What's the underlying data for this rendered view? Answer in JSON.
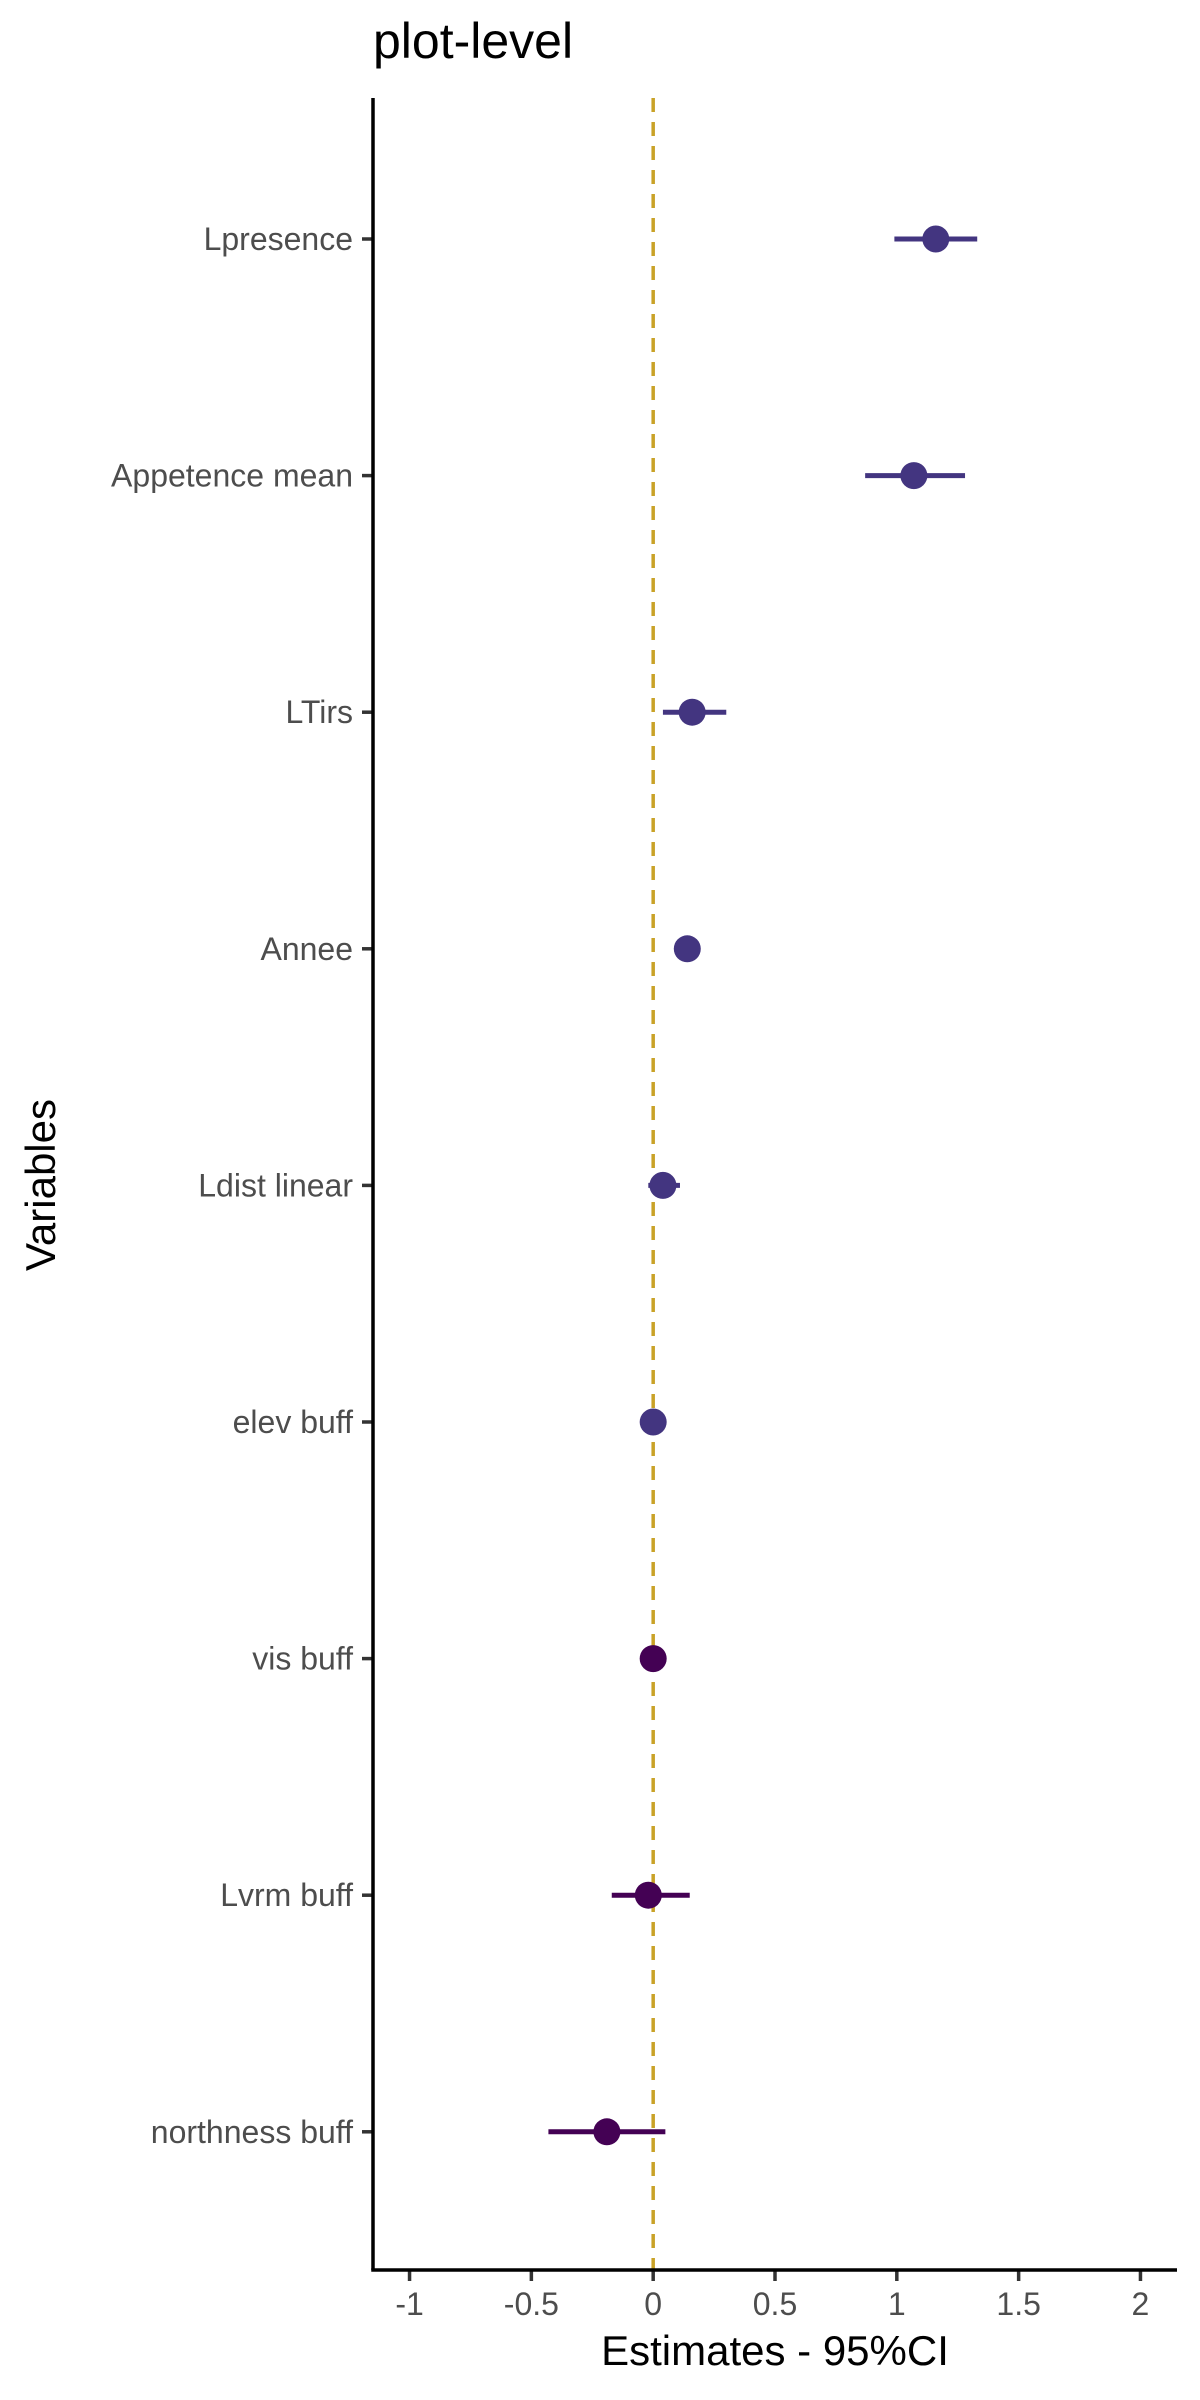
{
  "chart_data": {
    "type": "scatter",
    "title": "plot-level",
    "xlabel": "Estimates - 95%CI",
    "ylabel": "Variables",
    "xlim": [
      -1.15,
      2.15
    ],
    "x_ticks": [
      "-1",
      "-0.5",
      "0",
      "0.5",
      "1",
      "1.5",
      "2"
    ],
    "x_tick_values": [
      -1,
      -0.5,
      0,
      0.5,
      1,
      1.5,
      2
    ],
    "reference_line": {
      "x": 0,
      "color": "#c9a227",
      "style": "dashed"
    },
    "grid": false,
    "legend": "none",
    "points": [
      {
        "label": "Lpresence",
        "estimate": 1.16,
        "ci_low": 0.99,
        "ci_high": 1.33,
        "color": "#433580"
      },
      {
        "label": "Appetence mean",
        "estimate": 1.07,
        "ci_low": 0.87,
        "ci_high": 1.28,
        "color": "#433580"
      },
      {
        "label": "LTirs",
        "estimate": 0.16,
        "ci_low": 0.04,
        "ci_high": 0.3,
        "color": "#433580"
      },
      {
        "label": "Annee",
        "estimate": 0.14,
        "ci_low": 0.13,
        "ci_high": 0.15,
        "color": "#433580"
      },
      {
        "label": "Ldist linear",
        "estimate": 0.04,
        "ci_low": -0.02,
        "ci_high": 0.11,
        "color": "#433580"
      },
      {
        "label": "elev buff",
        "estimate": 0.0,
        "ci_low": -0.01,
        "ci_high": 0.01,
        "color": "#433580"
      },
      {
        "label": "vis buff",
        "estimate": 0.0,
        "ci_low": -0.01,
        "ci_high": 0.01,
        "color": "#440154"
      },
      {
        "label": "Lvrm buff",
        "estimate": -0.02,
        "ci_low": -0.17,
        "ci_high": 0.15,
        "color": "#440154"
      },
      {
        "label": "northness buff",
        "estimate": -0.19,
        "ci_low": -0.43,
        "ci_high": 0.05,
        "color": "#440154"
      }
    ]
  }
}
